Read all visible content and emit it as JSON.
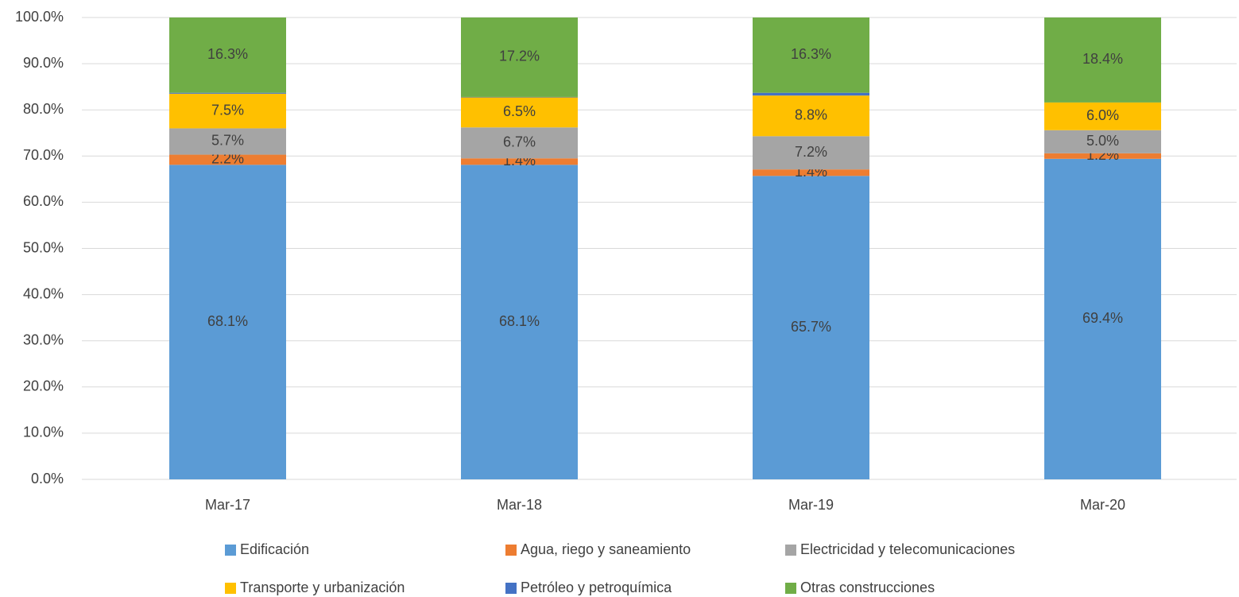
{
  "chart_data": {
    "type": "stacked_bar",
    "categories": [
      "Mar-17",
      "Mar-18",
      "Mar-19",
      "Mar-20"
    ],
    "series": [
      {
        "name": "Edificación",
        "color": "#5b9bd5",
        "values": [
          68.1,
          68.1,
          65.7,
          69.4
        ],
        "value_labels": [
          "68.1%",
          "68.1%",
          "65.7%",
          "69.4%"
        ]
      },
      {
        "name": "Agua, riego y saneamiento",
        "color": "#ed7d31",
        "values": [
          2.2,
          1.4,
          1.4,
          1.2
        ],
        "value_labels": [
          "2.2%",
          "1.4%",
          "1.4%",
          "1.2%"
        ]
      },
      {
        "name": "Electricidad y telecomunicaciones",
        "color": "#a5a5a5",
        "values": [
          5.7,
          6.7,
          7.2,
          5.0
        ],
        "value_labels": [
          "5.7%",
          "6.7%",
          "7.2%",
          "5.0%"
        ]
      },
      {
        "name": "Transporte y urbanización",
        "color": "#ffc000",
        "values": [
          7.5,
          6.5,
          8.8,
          6.0
        ],
        "value_labels": [
          "7.5%",
          "6.5%",
          "8.8%",
          "6.0%"
        ]
      },
      {
        "name": "Petróleo y petroquímica",
        "color": "#4472c4",
        "values": [
          0.2,
          0.1,
          0.6,
          0.0
        ]
      },
      {
        "name": "Otras construcciones",
        "color": "#70ad47",
        "values": [
          16.3,
          17.2,
          16.3,
          18.4
        ],
        "value_labels": [
          "16.3%",
          "17.2%",
          "16.3%",
          "18.4%"
        ]
      }
    ],
    "ylim": [
      0,
      100
    ],
    "yticks": [
      {
        "value": 0,
        "label": "0.0%"
      },
      {
        "value": 10,
        "label": "10.0%"
      },
      {
        "value": 20,
        "label": "20.0%"
      },
      {
        "value": 30,
        "label": "30.0%"
      },
      {
        "value": 40,
        "label": "40.0%"
      },
      {
        "value": 50,
        "label": "50.0%"
      },
      {
        "value": 60,
        "label": "60.0%"
      },
      {
        "value": 70,
        "label": "70.0%"
      },
      {
        "value": 80,
        "label": "80.0%"
      },
      {
        "value": 90,
        "label": "90.0%"
      },
      {
        "value": 100,
        "label": "100.0%"
      }
    ],
    "grid": true
  }
}
